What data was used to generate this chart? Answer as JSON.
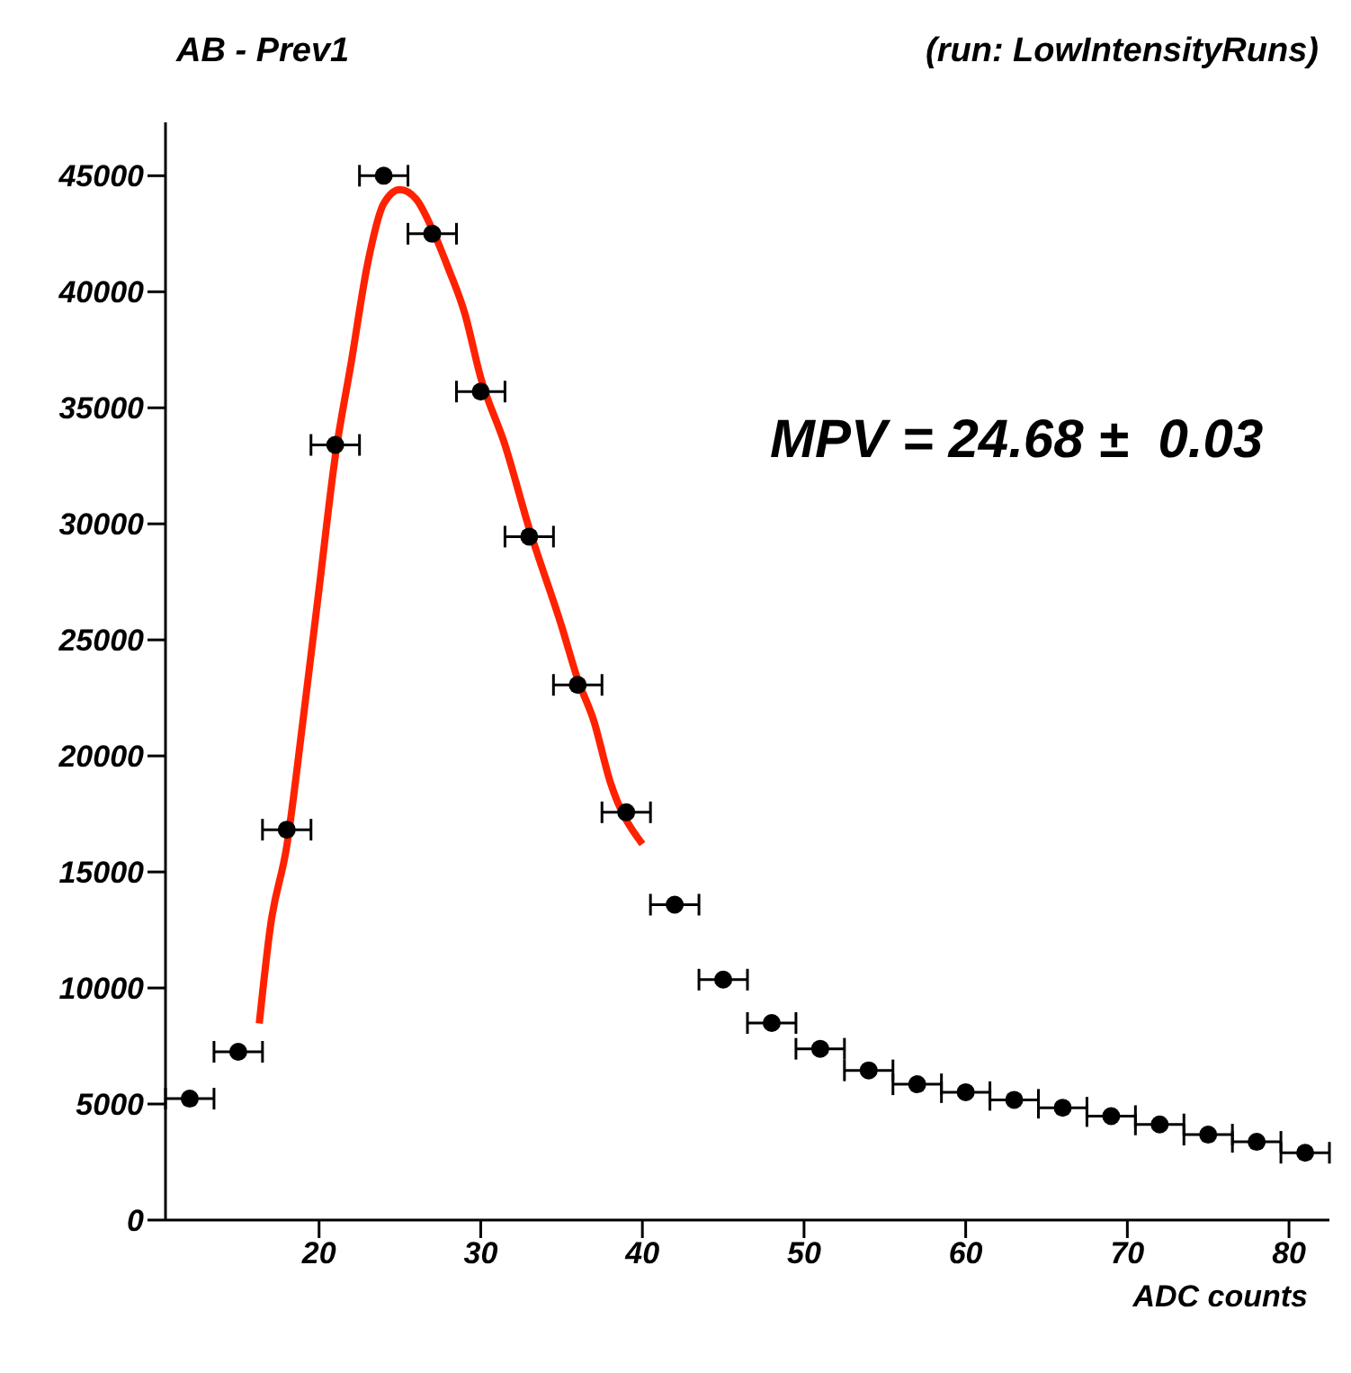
{
  "chart_data": {
    "type": "scatter",
    "title": "AB - Prev1",
    "subtitle": "(run: LowIntensityRuns)",
    "xlabel": "ADC counts",
    "annotations": [
      "MPV = 24.68 ±  0.03"
    ],
    "xlim": [
      10.5,
      82.5
    ],
    "xticks": [
      20,
      30,
      40,
      50,
      60,
      70,
      80
    ],
    "ylim": [
      0,
      47300
    ],
    "yticks": [
      0,
      5000,
      10000,
      15000,
      20000,
      25000,
      30000,
      35000,
      40000,
      45000
    ],
    "grid": false,
    "legend": false,
    "series": [
      {
        "color": "#000000",
        "marker": "circle",
        "x": [
          12,
          15,
          18,
          21,
          24,
          27,
          30,
          33,
          36,
          39,
          42,
          45,
          48,
          51,
          54,
          57,
          60,
          63,
          66,
          69,
          72,
          75,
          78,
          81
        ],
        "values": [
          5230,
          7250,
          16820,
          33400,
          45000,
          42500,
          35700,
          29450,
          23060,
          17570,
          13590,
          10360,
          8490,
          7380,
          6450,
          5850,
          5510,
          5180,
          4840,
          4480,
          4120,
          3680,
          3370,
          2900
        ],
        "xerrors": [
          1.5,
          1.5,
          1.5,
          1.5,
          1.5,
          1.5,
          1.5,
          1.5,
          1.5,
          1.5,
          1.5,
          1.5,
          1.5,
          1.5,
          1.5,
          1.5,
          1.5,
          1.5,
          1.5,
          1.5,
          1.5,
          1.5,
          1.5,
          1.5
        ]
      },
      {
        "type": "line",
        "color": "#ff2200",
        "marker": "none",
        "x": [
          16.3,
          17,
          18,
          19,
          20,
          21,
          22,
          23,
          24,
          25,
          26,
          27,
          28,
          29,
          30,
          31.5,
          33,
          35,
          36,
          37,
          38,
          40
        ],
        "values": [
          8470,
          12700,
          16100,
          21500,
          27200,
          32900,
          37000,
          41200,
          43800,
          44400,
          44000,
          42700,
          41000,
          39100,
          36300,
          33400,
          29800,
          25600,
          23300,
          21500,
          18900,
          16200
        ]
      }
    ]
  }
}
